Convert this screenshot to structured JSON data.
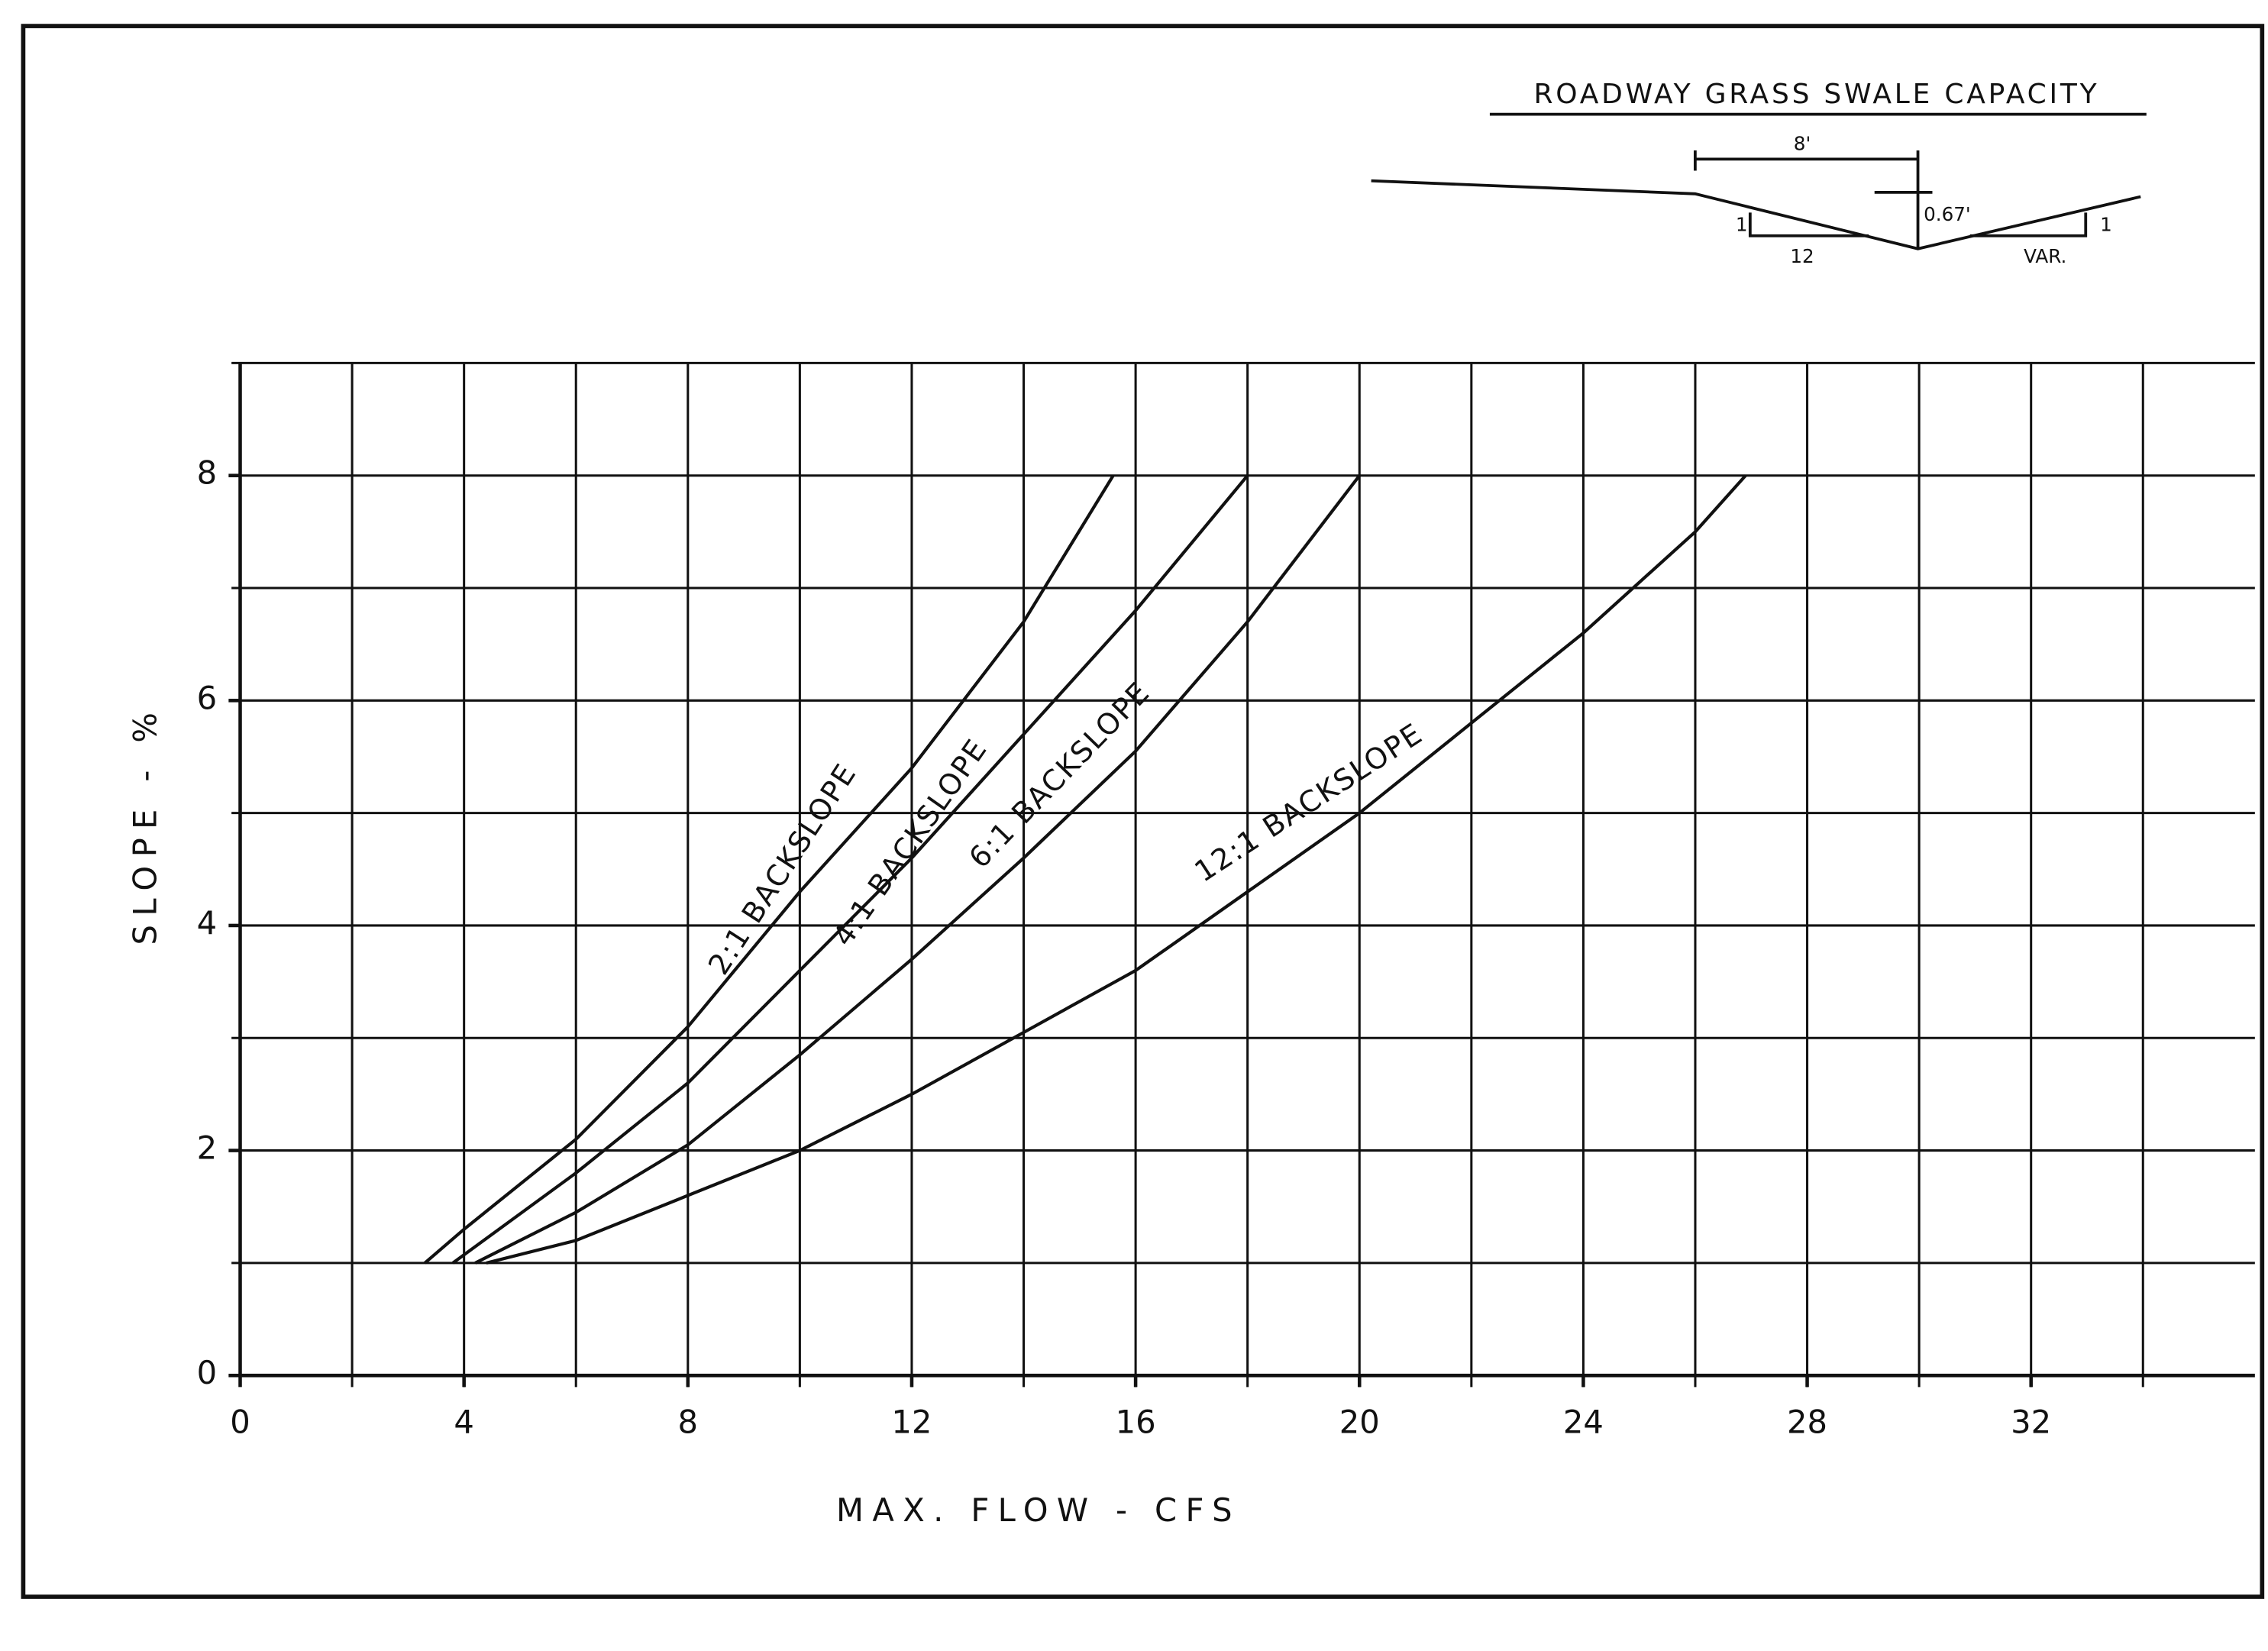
{
  "chart_data": {
    "type": "line",
    "title": "ROADWAY GRASS SWALE CAPACITY",
    "inset_labels": {
      "width": "8'",
      "depth": "0.67'",
      "left_rise": "1",
      "left_run": "12",
      "right_run": "VAR.",
      "right_rise": "1"
    },
    "x_label": "MAX.   FLOW  -  CFS",
    "y_label": "SLOPE - %",
    "xlim": [
      0,
      36
    ],
    "ylim": [
      0,
      9
    ],
    "xticks": [
      0,
      4,
      8,
      12,
      16,
      20,
      24,
      28,
      32
    ],
    "yticks": [
      0,
      2,
      4,
      6,
      8
    ],
    "xgrid": [
      2,
      4,
      6,
      8,
      10,
      12,
      14,
      16,
      18,
      20,
      22,
      24,
      26,
      28,
      30,
      32,
      34
    ],
    "ygrid": [
      1,
      2,
      3,
      4,
      5,
      6,
      7,
      8,
      9
    ],
    "color": "#111111",
    "series": [
      {
        "name": "2:1 BACKSLOPE",
        "x": [
          3.3,
          4,
          6,
          8,
          10,
          12,
          14,
          15.6
        ],
        "values": [
          1,
          1.3,
          2.1,
          3.1,
          4.3,
          5.4,
          6.7,
          8
        ]
      },
      {
        "name": "4:1 BACKSLOPE",
        "x": [
          3.8,
          6,
          8,
          10,
          12,
          14,
          16,
          18
        ],
        "values": [
          1,
          1.8,
          2.6,
          3.6,
          4.6,
          5.7,
          6.8,
          8
        ]
      },
      {
        "name": "6:1 BACKSLOPE",
        "x": [
          4.2,
          6,
          8,
          10,
          12,
          14,
          16,
          18,
          20
        ],
        "values": [
          1,
          1.45,
          2.05,
          2.85,
          3.7,
          4.6,
          5.55,
          6.7,
          8
        ]
      },
      {
        "name": "12:1 BACKSLOPE",
        "x": [
          4.4,
          6,
          8,
          10,
          12,
          14,
          16,
          18,
          20,
          22,
          24,
          26,
          26.9
        ],
        "values": [
          1,
          1.2,
          1.6,
          2,
          2.5,
          3.05,
          3.6,
          4.3,
          5,
          5.8,
          6.6,
          7.5,
          8
        ]
      }
    ]
  }
}
